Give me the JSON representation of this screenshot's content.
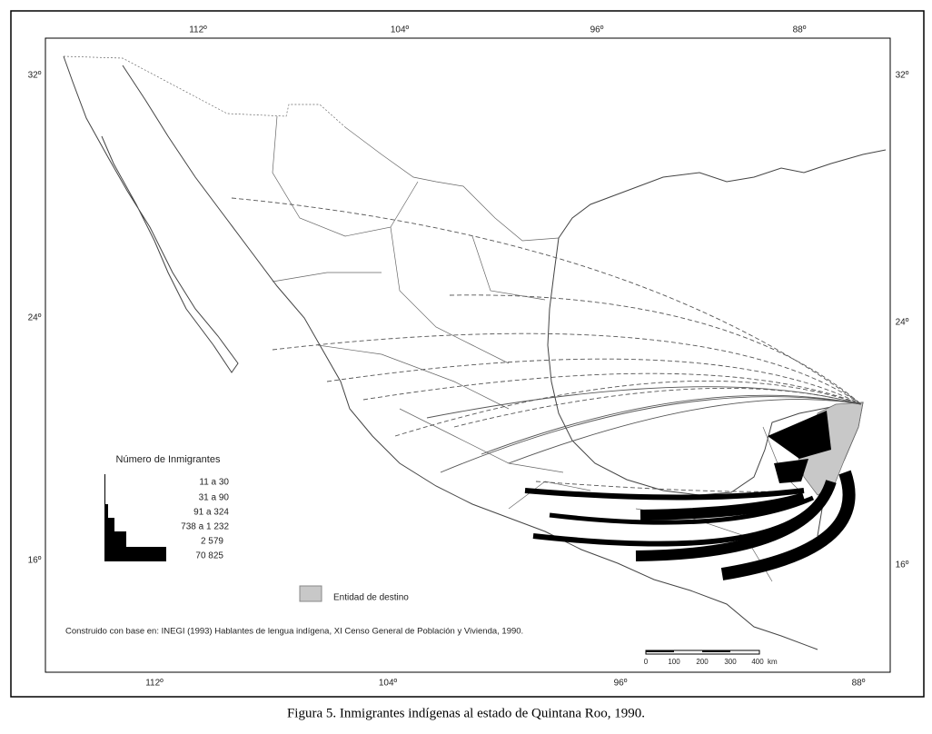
{
  "map": {
    "top_longitudes": [
      "112º",
      "104º",
      "96º",
      "88º"
    ],
    "bottom_longitudes": [
      "112º",
      "104º",
      "96º",
      "88º"
    ],
    "left_latitudes": [
      "32º",
      "24º",
      "16º"
    ],
    "right_latitudes": [
      "32º",
      "24º",
      "16º"
    ],
    "legend": {
      "title": "Número de Inmigrantes",
      "classes": [
        "11 a 30",
        "31 a 90",
        "91 a 324",
        "738 a 1 232",
        "2 579",
        "70 825"
      ]
    },
    "destination_legend": "Entidad de destino",
    "source": "Construido con base en: INEGI (1993) Hablantes de lengua indígena, XI Censo General de Población y Vivienda, 1990.",
    "scale": {
      "ticks": [
        "0",
        "100",
        "200",
        "300",
        "400"
      ],
      "unit": "km"
    }
  },
  "caption": "Figura 5. Inmigrantes indígenas al estado de Quintana Roo, 1990."
}
